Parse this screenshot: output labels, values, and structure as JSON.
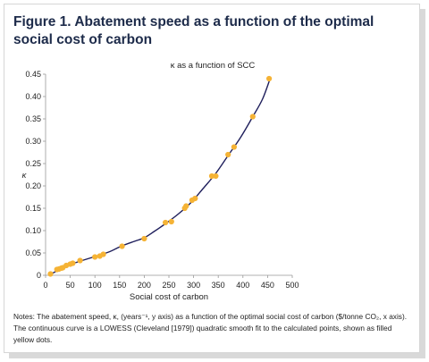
{
  "figure": {
    "title": "Figure 1. Abatement speed as a function of the optimal social cost of carbon",
    "notes": "Notes: The abatement speed, κ, (years⁻¹, y axis) as a function of the optimal social cost of carbon ($/tonne CO₂, x axis). The continuous curve is a LOWESS (Cleveland [1979]) quadratic smooth fit to the calculated points, shown as filled yellow dots."
  },
  "chart_data": {
    "type": "scatter",
    "title": "κ as a function of SCC",
    "xlabel": "Social cost of carbon",
    "ylabel": "κ",
    "xlim": [
      0,
      500
    ],
    "ylim": [
      0,
      0.45
    ],
    "xticks": [
      "0",
      "50",
      "100",
      "150",
      "200",
      "250",
      "300",
      "350",
      "400",
      "450",
      "500"
    ],
    "yticks": [
      "0",
      "0.05",
      "0.10",
      "0.15",
      "0.20",
      "0.25",
      "0.30",
      "0.35",
      "0.40",
      "0.45"
    ],
    "grid": false,
    "series": [
      {
        "kind": "points",
        "color": "#f5b335",
        "points": [
          [
            10,
            0.003
          ],
          [
            23,
            0.013
          ],
          [
            27,
            0.014
          ],
          [
            32,
            0.016
          ],
          [
            35,
            0.017
          ],
          [
            42,
            0.022
          ],
          [
            50,
            0.025
          ],
          [
            55,
            0.027
          ],
          [
            70,
            0.033
          ],
          [
            100,
            0.041
          ],
          [
            110,
            0.043
          ],
          [
            117,
            0.047
          ],
          [
            155,
            0.065
          ],
          [
            200,
            0.082
          ],
          [
            243,
            0.118
          ],
          [
            255,
            0.12
          ],
          [
            282,
            0.15
          ],
          [
            285,
            0.155
          ],
          [
            297,
            0.168
          ],
          [
            303,
            0.172
          ],
          [
            337,
            0.222
          ],
          [
            345,
            0.222
          ],
          [
            370,
            0.27
          ],
          [
            382,
            0.287
          ],
          [
            420,
            0.355
          ],
          [
            453,
            0.44
          ]
        ]
      },
      {
        "kind": "curve",
        "color": "#1f1f5c",
        "points": [
          [
            10,
            0.002
          ],
          [
            30,
            0.014
          ],
          [
            60,
            0.028
          ],
          [
            100,
            0.042
          ],
          [
            130,
            0.053
          ],
          [
            155,
            0.066
          ],
          [
            180,
            0.076
          ],
          [
            200,
            0.084
          ],
          [
            220,
            0.098
          ],
          [
            245,
            0.117
          ],
          [
            270,
            0.138
          ],
          [
            295,
            0.163
          ],
          [
            320,
            0.195
          ],
          [
            345,
            0.228
          ],
          [
            370,
            0.268
          ],
          [
            395,
            0.308
          ],
          [
            420,
            0.355
          ],
          [
            440,
            0.395
          ],
          [
            455,
            0.44
          ]
        ]
      }
    ]
  }
}
